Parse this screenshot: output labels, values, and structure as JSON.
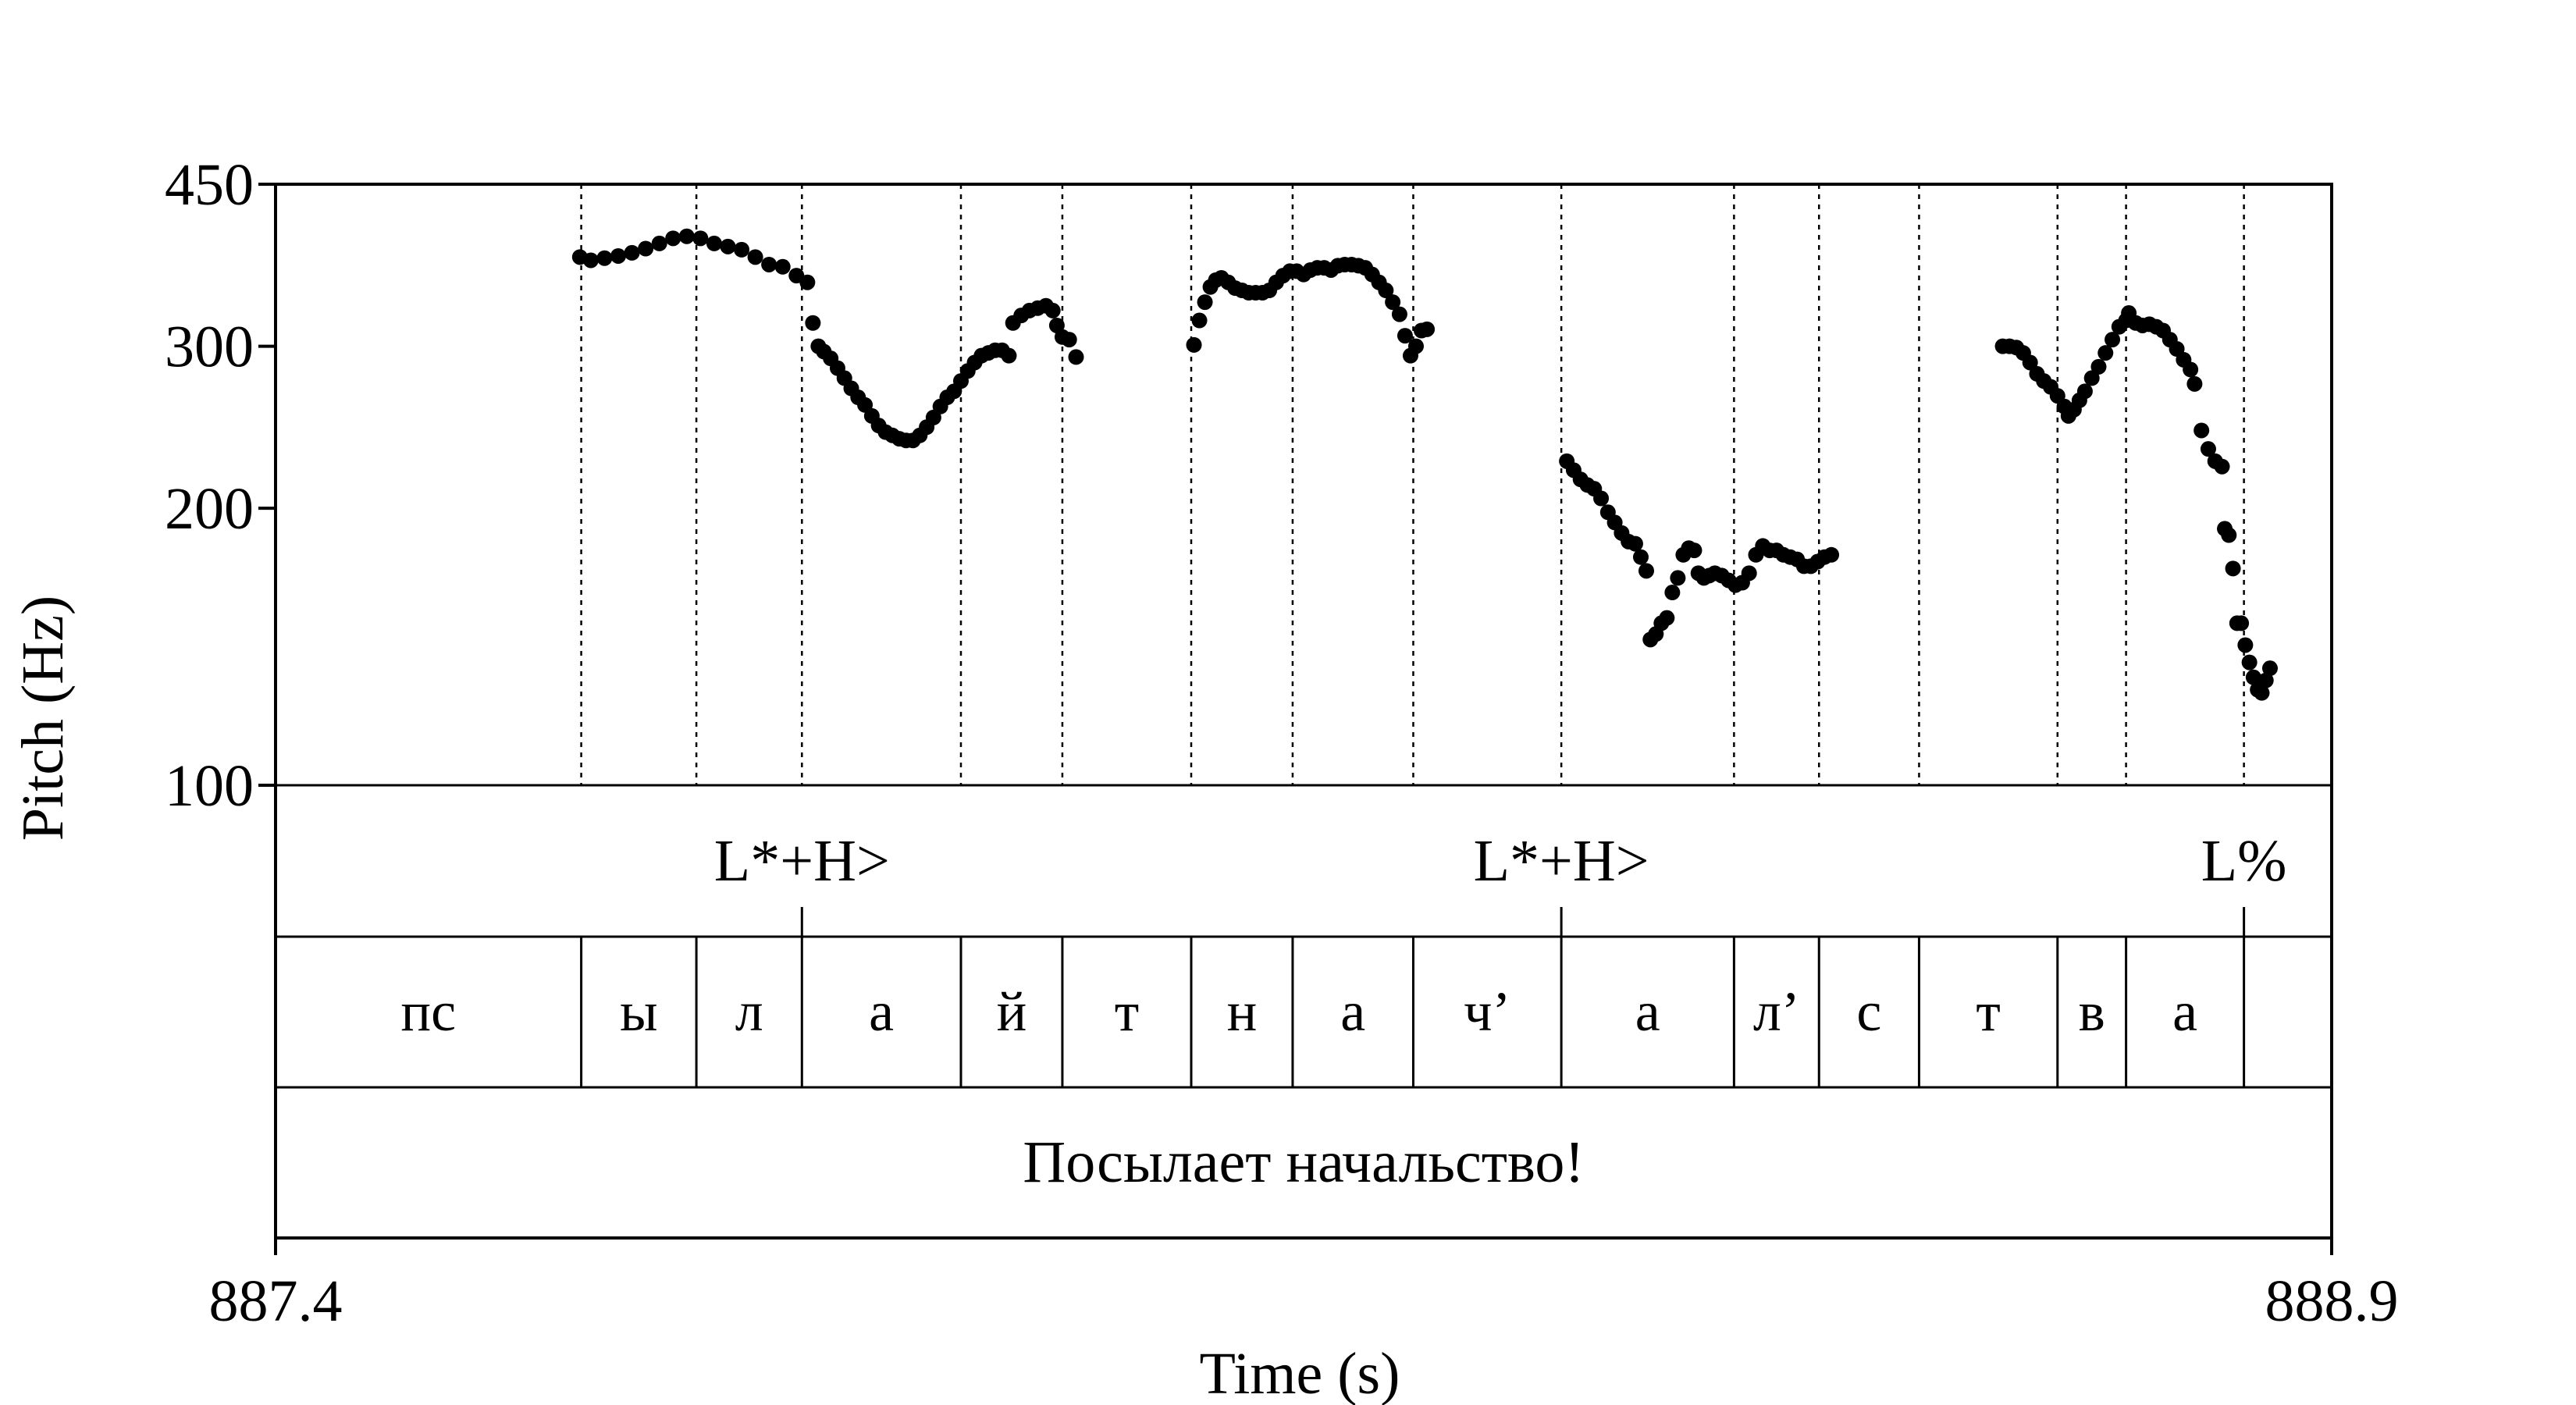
{
  "chart_data": {
    "type": "scatter",
    "xlabel": "Time (s)",
    "ylabel": "Pitch (Hz)",
    "xlim": [
      887.4,
      888.9
    ],
    "ylim": [
      100,
      450
    ],
    "y_scale": "log",
    "x_ticks": [
      "887.4",
      "888.9"
    ],
    "y_ticks": [
      {
        "value": 450,
        "label": "450"
      },
      {
        "value": 300,
        "label": "300"
      },
      {
        "value": 200,
        "label": "200"
      },
      {
        "value": 100,
        "label": "100"
      }
    ],
    "grid": false,
    "boundaries": [
      887.623,
      887.707,
      887.784,
      887.9,
      887.974,
      888.068,
      888.142,
      888.23,
      888.338,
      888.464,
      888.526,
      888.599,
      888.7,
      888.75,
      888.836
    ],
    "tones": [
      {
        "time": 887.784,
        "label": "L*+H>"
      },
      {
        "time": 888.338,
        "label": "L*+H>"
      },
      {
        "time": 888.836,
        "label": "L%"
      }
    ],
    "segments": [
      {
        "start": 887.4,
        "end": 887.623,
        "label": "пс"
      },
      {
        "start": 887.623,
        "end": 887.707,
        "label": "ы"
      },
      {
        "start": 887.707,
        "end": 887.784,
        "label": "л"
      },
      {
        "start": 887.784,
        "end": 887.9,
        "label": "а"
      },
      {
        "start": 887.9,
        "end": 887.974,
        "label": "й"
      },
      {
        "start": 887.974,
        "end": 888.068,
        "label": "т"
      },
      {
        "start": 888.068,
        "end": 888.142,
        "label": "н"
      },
      {
        "start": 888.142,
        "end": 888.23,
        "label": "а"
      },
      {
        "start": 888.23,
        "end": 888.338,
        "label": "ч’"
      },
      {
        "start": 888.338,
        "end": 888.464,
        "label": "а"
      },
      {
        "start": 888.464,
        "end": 888.526,
        "label": "л’"
      },
      {
        "start": 888.526,
        "end": 888.599,
        "label": "с"
      },
      {
        "start": 888.599,
        "end": 888.7,
        "label": "т"
      },
      {
        "start": 888.7,
        "end": 888.75,
        "label": "в"
      },
      {
        "start": 888.75,
        "end": 888.836,
        "label": "а"
      },
      {
        "start": 888.836,
        "end": 888.9,
        "label": ""
      }
    ],
    "utterance": {
      "start": 887.4,
      "end": 888.9,
      "label": "Посылает начальство!"
    },
    "series": [
      {
        "points": [
          [
            887.622,
            375
          ],
          [
            887.63,
            372
          ],
          [
            887.64,
            374
          ],
          [
            887.65,
            376
          ],
          [
            887.66,
            379
          ],
          [
            887.67,
            383
          ],
          [
            887.68,
            388
          ],
          [
            887.69,
            393
          ],
          [
            887.7,
            395
          ],
          [
            887.71,
            393
          ],
          [
            887.72,
            388
          ],
          [
            887.73,
            385
          ],
          [
            887.74,
            382
          ],
          [
            887.75,
            375
          ],
          [
            887.76,
            368
          ],
          [
            887.77,
            366
          ],
          [
            887.78,
            358
          ],
          [
            887.788,
            352
          ],
          [
            887.792,
            318
          ],
          [
            887.796,
            300
          ],
          [
            887.8,
            296
          ],
          [
            887.805,
            291
          ],
          [
            887.81,
            284
          ],
          [
            887.815,
            277
          ],
          [
            887.82,
            270
          ],
          [
            887.825,
            264
          ],
          [
            887.83,
            259
          ],
          [
            887.835,
            252
          ],
          [
            887.84,
            246
          ],
          [
            887.845,
            242
          ],
          [
            887.85,
            240
          ],
          [
            887.855,
            238
          ],
          [
            887.86,
            237
          ],
          [
            887.865,
            237
          ],
          [
            887.87,
            240
          ],
          [
            887.875,
            245
          ],
          [
            887.88,
            251
          ],
          [
            887.885,
            258
          ],
          [
            887.89,
            264
          ],
          [
            887.895,
            268
          ],
          [
            887.9,
            275
          ],
          [
            887.905,
            282
          ],
          [
            887.91,
            288
          ],
          [
            887.915,
            293
          ],
          [
            887.92,
            295
          ],
          [
            887.925,
            297
          ],
          [
            887.93,
            297
          ],
          [
            887.935,
            293
          ],
          [
            887.938,
            318
          ],
          [
            887.944,
            324
          ],
          [
            887.95,
            328
          ],
          [
            887.956,
            330
          ],
          [
            887.962,
            332
          ],
          [
            887.967,
            328
          ],
          [
            887.97,
            316
          ],
          [
            887.974,
            307
          ],
          [
            887.979,
            305
          ],
          [
            887.984,
            292
          ]
        ]
      },
      {
        "points": [
          [
            888.07,
            301
          ],
          [
            888.074,
            320
          ],
          [
            888.078,
            335
          ],
          [
            888.082,
            348
          ],
          [
            888.086,
            354
          ],
          [
            888.09,
            356
          ],
          [
            888.095,
            352
          ],
          [
            888.1,
            347
          ],
          [
            888.105,
            345
          ],
          [
            888.11,
            343
          ],
          [
            888.115,
            343
          ],
          [
            888.12,
            343
          ],
          [
            888.125,
            345
          ],
          [
            888.13,
            352
          ],
          [
            888.135,
            358
          ],
          [
            888.14,
            362
          ],
          [
            888.145,
            362
          ],
          [
            888.15,
            359
          ],
          [
            888.155,
            363
          ],
          [
            888.16,
            365
          ],
          [
            888.165,
            365
          ],
          [
            888.17,
            363
          ],
          [
            888.175,
            367
          ],
          [
            888.18,
            368
          ],
          [
            888.185,
            368
          ],
          [
            888.19,
            367
          ],
          [
            888.195,
            365
          ],
          [
            888.2,
            359
          ],
          [
            888.205,
            352
          ],
          [
            888.21,
            345
          ],
          [
            888.215,
            335
          ],
          [
            888.22,
            325
          ],
          [
            888.224,
            308
          ],
          [
            888.228,
            293
          ],
          [
            888.232,
            300
          ],
          [
            888.236,
            312
          ],
          [
            888.24,
            313
          ]
        ]
      },
      {
        "points": [
          [
            888.342,
            225
          ],
          [
            888.347,
            220
          ],
          [
            888.352,
            215
          ],
          [
            888.357,
            212
          ],
          [
            888.362,
            210
          ],
          [
            888.367,
            205
          ],
          [
            888.372,
            198
          ],
          [
            888.377,
            193
          ],
          [
            888.382,
            188
          ],
          [
            888.387,
            184
          ],
          [
            888.392,
            183
          ],
          [
            888.396,
            177
          ],
          [
            888.4,
            171
          ],
          [
            888.403,
            144
          ],
          [
            888.407,
            146
          ],
          [
            888.411,
            150
          ],
          [
            888.415,
            152
          ],
          [
            888.419,
            162
          ],
          [
            888.423,
            168
          ],
          [
            888.427,
            178
          ],
          [
            888.431,
            181
          ],
          [
            888.435,
            180
          ],
          [
            888.438,
            170
          ],
          [
            888.442,
            168
          ],
          [
            888.446,
            169
          ],
          [
            888.45,
            170
          ],
          [
            888.455,
            169
          ],
          [
            888.46,
            167
          ],
          [
            888.465,
            165
          ],
          [
            888.47,
            166
          ],
          [
            888.475,
            170
          ],
          [
            888.48,
            178
          ],
          [
            888.485,
            182
          ],
          [
            888.49,
            180
          ],
          [
            888.495,
            180
          ],
          [
            888.5,
            178
          ],
          [
            888.505,
            177
          ],
          [
            888.51,
            176
          ],
          [
            888.515,
            173
          ],
          [
            888.52,
            173
          ],
          [
            888.525,
            175
          ],
          [
            888.53,
            177
          ],
          [
            888.535,
            178
          ]
        ]
      },
      {
        "points": [
          [
            888.66,
            300
          ],
          [
            888.665,
            300
          ],
          [
            888.67,
            299
          ],
          [
            888.675,
            295
          ],
          [
            888.68,
            288
          ],
          [
            888.685,
            280
          ],
          [
            888.69,
            275
          ],
          [
            888.695,
            271
          ],
          [
            888.7,
            265
          ],
          [
            888.705,
            258
          ],
          [
            888.708,
            252
          ],
          [
            888.712,
            256
          ],
          [
            888.716,
            262
          ],
          [
            888.72,
            268
          ],
          [
            888.725,
            277
          ],
          [
            888.73,
            285
          ],
          [
            888.735,
            295
          ],
          [
            888.74,
            305
          ],
          [
            888.745,
            315
          ],
          [
            888.75,
            320
          ],
          [
            888.752,
            326
          ],
          [
            888.757,
            318
          ],
          [
            888.762,
            316
          ],
          [
            888.767,
            317
          ],
          [
            888.772,
            315
          ],
          [
            888.777,
            312
          ],
          [
            888.782,
            305
          ],
          [
            888.787,
            298
          ],
          [
            888.792,
            290
          ],
          [
            888.797,
            283
          ],
          [
            888.8,
            273
          ],
          [
            888.805,
            243
          ],
          [
            888.81,
            232
          ],
          [
            888.815,
            225
          ],
          [
            888.82,
            222
          ],
          [
            888.822,
            190
          ],
          [
            888.825,
            187
          ],
          [
            888.828,
            172
          ],
          [
            888.831,
            150
          ],
          [
            888.834,
            150
          ],
          [
            888.837,
            142
          ],
          [
            888.84,
            136
          ],
          [
            888.843,
            131
          ],
          [
            888.846,
            127
          ],
          [
            888.849,
            126
          ],
          [
            888.852,
            130
          ],
          [
            888.855,
            134
          ]
        ]
      }
    ]
  }
}
